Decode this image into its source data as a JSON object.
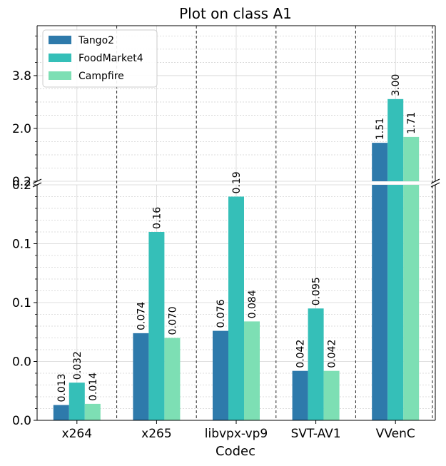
{
  "chart_data": {
    "type": "bar",
    "title": "Plot on class A1",
    "xlabel": "Codec",
    "ylabel": "",
    "categories": [
      "x264",
      "x265",
      "libvpx-vp9",
      "SVT-AV1",
      "VVenC"
    ],
    "series": [
      {
        "name": "Tango2",
        "color": "#2e7aab",
        "values": [
          0.013,
          0.074,
          0.076,
          0.042,
          1.51
        ],
        "labels": [
          "0.013",
          "0.074",
          "0.076",
          "0.042",
          "1.51"
        ]
      },
      {
        "name": "FoodMarket4",
        "color": "#35bfb8",
        "values": [
          0.032,
          0.16,
          0.19,
          0.095,
          3.0
        ],
        "labels": [
          "0.032",
          "0.16",
          "0.19",
          "0.095",
          "3.00"
        ]
      },
      {
        "name": "Campfire",
        "color": "#7ddfb4",
        "values": [
          0.014,
          0.07,
          0.084,
          0.042,
          1.71
        ],
        "labels": [
          "0.014",
          "0.070",
          "0.084",
          "0.042",
          "1.71"
        ]
      }
    ],
    "broken_axis": {
      "lower": {
        "ylim": [
          0,
          0.2
        ],
        "tick_labels": [
          "0.0",
          "0.0",
          "0.1",
          "0.1",
          "0.2"
        ],
        "tick_values": [
          0,
          0.05,
          0.1,
          0.15,
          0.2
        ]
      },
      "upper": {
        "ylim": [
          0.2,
          5.5
        ],
        "tick_labels": [
          "0.2",
          "2.0",
          "3.8"
        ],
        "tick_values": [
          0.2,
          2.0,
          3.8
        ]
      }
    },
    "grid": true,
    "legend_position": "top-left",
    "group_separators": "dashed"
  }
}
